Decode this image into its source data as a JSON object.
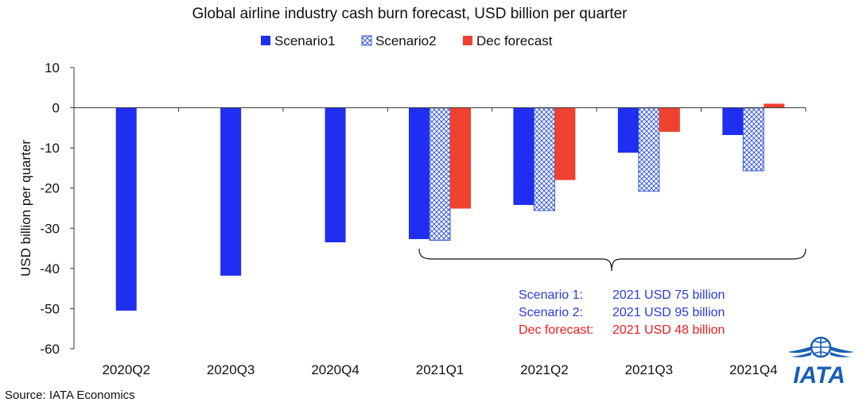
{
  "chart_data": {
    "type": "bar",
    "title": "Global airline industry cash burn forecast, USD billion per quarter",
    "xlabel": "",
    "ylabel": "USD billion per quarter",
    "ylim": [
      -60,
      10
    ],
    "yticks": [
      10,
      0,
      -10,
      -20,
      -30,
      -40,
      -50,
      -60
    ],
    "categories": [
      "2020Q2",
      "2020Q3",
      "2020Q4",
      "2021Q1",
      "2021Q2",
      "2021Q3",
      "2021Q4"
    ],
    "series": [
      {
        "name": "Scenario1",
        "color": "#1f2ef0",
        "pattern": "solid",
        "values": [
          -50.5,
          -41.8,
          -33.5,
          -32.7,
          -24.2,
          -11.2,
          -6.8
        ]
      },
      {
        "name": "Scenario2",
        "color": "#3a5bd9",
        "pattern": "crosshatch",
        "values": [
          null,
          null,
          null,
          -33.0,
          -25.6,
          -20.8,
          -15.7
        ]
      },
      {
        "name": "Dec forecast",
        "color": "#f0412e",
        "pattern": "solid",
        "values": [
          null,
          null,
          null,
          -25.1,
          -18.0,
          -6.0,
          1.0
        ]
      }
    ],
    "legend_position": "top-center",
    "annotations": [
      {
        "text_label": "Scenario 1:",
        "text_value": "2021 USD 75 billion",
        "color": "#2b3bdc"
      },
      {
        "text_label": "Scenario 2:",
        "text_value": "2021 USD 95 billion",
        "color": "#2b3bdc"
      },
      {
        "text_label": "Dec forecast:",
        "text_value": "2021 USD 48 billion",
        "color": "#ee1c1c"
      }
    ],
    "bracket_label": "2021"
  },
  "source": "Source: IATA Economics",
  "logo": {
    "text": "IATA",
    "color": "#1a5fb4"
  }
}
